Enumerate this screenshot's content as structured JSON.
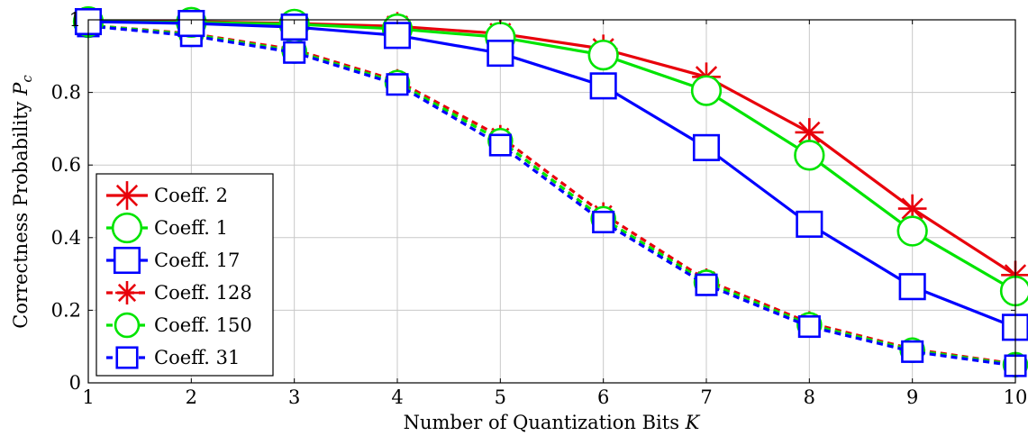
{
  "chart_data": {
    "type": "line",
    "xlabel": "Number of Quantization Bits K",
    "xlabel_main": "Number of Quantization Bits ",
    "xlabel_var": "K",
    "ylabel": "Correctness Probability Pc",
    "ylabel_main": "Correctness Probability ",
    "ylabel_var": "P",
    "ylabel_sub": "c",
    "xlim": [
      1,
      10
    ],
    "ylim": [
      0,
      1
    ],
    "grid": true,
    "legend_position": "bottom-left",
    "x": [
      1,
      2,
      3,
      4,
      5,
      6,
      7,
      8,
      9,
      10
    ],
    "x_ticks": [
      "1",
      "2",
      "3",
      "4",
      "5",
      "6",
      "7",
      "8",
      "9",
      "10"
    ],
    "y_ticks": [
      {
        "value": 0,
        "label": "0"
      },
      {
        "value": 0.2,
        "label": "0.2"
      },
      {
        "value": 0.4,
        "label": "0.4"
      },
      {
        "value": 0.6,
        "label": "0.6"
      },
      {
        "value": 0.8,
        "label": "0.8"
      },
      {
        "value": 1,
        "label": "1"
      }
    ],
    "series": [
      {
        "name": "Coeff. 2",
        "color": "#e8000b",
        "marker": "asterisk",
        "dashed": false,
        "values": [
          0.995,
          0.995,
          0.99,
          0.982,
          0.962,
          0.92,
          0.843,
          0.69,
          0.48,
          0.297
        ]
      },
      {
        "name": "Coeff. 1",
        "color": "#00e400",
        "marker": "circle",
        "dashed": false,
        "values": [
          0.995,
          0.993,
          0.988,
          0.975,
          0.952,
          0.903,
          0.805,
          0.627,
          0.418,
          0.253
        ]
      },
      {
        "name": "Coeff. 17",
        "color": "#0000ff",
        "marker": "square",
        "dashed": false,
        "values": [
          0.995,
          0.99,
          0.98,
          0.957,
          0.908,
          0.818,
          0.648,
          0.437,
          0.265,
          0.153
        ]
      },
      {
        "name": "Coeff. 128",
        "color": "#e8000b",
        "marker": "asterisk",
        "dashed": true,
        "values": [
          0.985,
          0.962,
          0.918,
          0.832,
          0.678,
          0.465,
          0.283,
          0.165,
          0.093,
          0.052
        ]
      },
      {
        "name": "Coeff. 150",
        "color": "#00e400",
        "marker": "circle",
        "dashed": true,
        "values": [
          0.985,
          0.96,
          0.914,
          0.827,
          0.667,
          0.452,
          0.277,
          0.16,
          0.09,
          0.05
        ]
      },
      {
        "name": "Coeff. 31",
        "color": "#0000ff",
        "marker": "square",
        "dashed": true,
        "values": [
          0.983,
          0.956,
          0.91,
          0.822,
          0.655,
          0.443,
          0.27,
          0.155,
          0.086,
          0.047
        ]
      }
    ]
  }
}
